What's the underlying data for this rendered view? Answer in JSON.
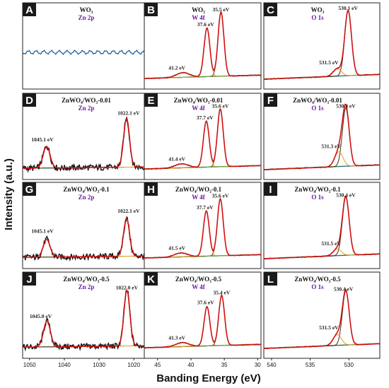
{
  "chart_data": {
    "type": "line",
    "xlabel": "Banding Energy (eV)",
    "ylabel": "Intensity (a.u.)",
    "columns": [
      {
        "id": "zn",
        "xlim": [
          1052,
          1017
        ],
        "ticks": [
          1050,
          1040,
          1030,
          1020
        ]
      },
      {
        "id": "w",
        "xlim": [
          47,
          29.5
        ],
        "ticks": [
          45,
          40,
          35,
          30
        ]
      },
      {
        "id": "o",
        "xlim": [
          541,
          526
        ],
        "ticks": [
          540,
          535,
          530
        ]
      }
    ],
    "panels": [
      {
        "letter": "A",
        "col": 0,
        "row": 0,
        "sample": "WO₃",
        "region": "Zn 2p",
        "kind": "flat",
        "peaks": [],
        "labels": []
      },
      {
        "letter": "B",
        "col": 1,
        "row": 0,
        "sample": "WO₃",
        "region": "W 4f",
        "kind": "w",
        "peaks": [
          {
            "c": 35.5,
            "h": 0.95,
            "w": 0.62
          },
          {
            "c": 37.6,
            "h": 0.72,
            "w": 0.62
          },
          {
            "c": 41.2,
            "h": 0.07,
            "w": 1.4
          }
        ],
        "labels": [
          {
            "t": "35.5 eV",
            "x": 35.5,
            "y": 1.02
          },
          {
            "t": "37.6 eV",
            "x": 37.8,
            "y": 0.8
          },
          {
            "t": "41.2 eV",
            "x": 42.1,
            "y": 0.16
          }
        ]
      },
      {
        "letter": "C",
        "col": 2,
        "row": 0,
        "sample": "WO₃",
        "region": "O 1s",
        "kind": "o",
        "peaks": [
          {
            "c": 530.1,
            "h": 0.96,
            "w": 0.62
          },
          {
            "c": 531.5,
            "h": 0.11,
            "w": 0.75
          }
        ],
        "labels": [
          {
            "t": "530.1 eV",
            "x": 530.1,
            "y": 1.04
          },
          {
            "t": "531.5 eV",
            "x": 532.6,
            "y": 0.24
          }
        ]
      },
      {
        "letter": "D",
        "col": 0,
        "row": 1,
        "sample": "ZnWO₄/WO₃-0.01",
        "region": "Zn 2p",
        "kind": "zn",
        "peaks": [
          {
            "c": 1022.1,
            "h": 0.72,
            "w": 1.2
          },
          {
            "c": 1045.1,
            "h": 0.32,
            "w": 1.4
          }
        ],
        "labels": [
          {
            "t": "1022.1 eV",
            "x": 1021.5,
            "y": 0.83
          },
          {
            "t": "1045.1 eV",
            "x": 1046.3,
            "y": 0.44
          }
        ]
      },
      {
        "letter": "E",
        "col": 1,
        "row": 1,
        "sample": "ZnWO₄/WO₃-0.01",
        "region": "W 4f",
        "kind": "w",
        "peaks": [
          {
            "c": 35.6,
            "h": 0.85,
            "w": 0.62
          },
          {
            "c": 37.7,
            "h": 0.68,
            "w": 0.62
          },
          {
            "c": 41.4,
            "h": 0.06,
            "w": 1.4
          }
        ],
        "labels": [
          {
            "t": "35.6 eV",
            "x": 35.6,
            "y": 0.93
          },
          {
            "t": "37.7 eV",
            "x": 37.9,
            "y": 0.76
          },
          {
            "t": "41.4 eV",
            "x": 42.1,
            "y": 0.15
          }
        ]
      },
      {
        "letter": "F",
        "col": 2,
        "row": 1,
        "sample": "ZnWO₄/WO₃-0.01",
        "region": "O 1s",
        "kind": "o",
        "peaks": [
          {
            "c": 530.4,
            "h": 0.86,
            "w": 0.62
          },
          {
            "c": 531.3,
            "h": 0.22,
            "w": 0.75
          }
        ],
        "labels": [
          {
            "t": "530.4 eV",
            "x": 530.4,
            "y": 0.93
          },
          {
            "t": "531.3 eV",
            "x": 532.3,
            "y": 0.34
          }
        ]
      },
      {
        "letter": "G",
        "col": 0,
        "row": 2,
        "sample": "ZnWO₄/WO₃-0.1",
        "region": "Zn 2p",
        "kind": "zn",
        "peaks": [
          {
            "c": 1022.1,
            "h": 0.56,
            "w": 1.2
          },
          {
            "c": 1045.1,
            "h": 0.26,
            "w": 1.4
          }
        ],
        "labels": [
          {
            "t": "1022.1 eV",
            "x": 1021.5,
            "y": 0.7
          },
          {
            "t": "1045.1 eV",
            "x": 1046.3,
            "y": 0.4
          }
        ]
      },
      {
        "letter": "H",
        "col": 1,
        "row": 2,
        "sample": "ZnWO₄/WO₃-0.1",
        "region": "W 4f",
        "kind": "w",
        "peaks": [
          {
            "c": 35.6,
            "h": 0.84,
            "w": 0.62
          },
          {
            "c": 37.7,
            "h": 0.67,
            "w": 0.62
          },
          {
            "c": 41.5,
            "h": 0.06,
            "w": 1.4
          }
        ],
        "labels": [
          {
            "t": "35.6 eV",
            "x": 35.6,
            "y": 0.92
          },
          {
            "t": "37.7 eV",
            "x": 37.9,
            "y": 0.75
          },
          {
            "t": "41.5 eV",
            "x": 42.1,
            "y": 0.15
          }
        ]
      },
      {
        "letter": "I",
        "col": 2,
        "row": 2,
        "sample": "ZnWO₄/WO₃-0.1",
        "region": "O 1s",
        "kind": "o",
        "peaks": [
          {
            "c": 530.4,
            "h": 0.86,
            "w": 0.62
          },
          {
            "c": 531.5,
            "h": 0.1,
            "w": 0.75
          }
        ],
        "labels": [
          {
            "t": "530.4 eV",
            "x": 530.4,
            "y": 0.93
          },
          {
            "t": "531.5 eV",
            "x": 532.3,
            "y": 0.22
          }
        ]
      },
      {
        "letter": "J",
        "col": 0,
        "row": 3,
        "sample": "ZnWO₄/WO₃-0.5",
        "region": "Zn 2p",
        "kind": "zn",
        "peaks": [
          {
            "c": 1022.0,
            "h": 0.82,
            "w": 1.2
          },
          {
            "c": 1045.0,
            "h": 0.38,
            "w": 1.4
          }
        ],
        "labels": [
          {
            "t": "1022.0 eV",
            "x": 1022.0,
            "y": 0.89
          },
          {
            "t": "1045.0 eV",
            "x": 1046.8,
            "y": 0.47
          }
        ]
      },
      {
        "letter": "K",
        "col": 1,
        "row": 3,
        "sample": "ZnWO₄/WO₃-0.5",
        "region": "W 4f",
        "kind": "w",
        "peaks": [
          {
            "c": 35.4,
            "h": 0.74,
            "w": 0.62
          },
          {
            "c": 37.6,
            "h": 0.58,
            "w": 0.62
          },
          {
            "c": 41.3,
            "h": 0.06,
            "w": 1.4
          }
        ],
        "labels": [
          {
            "t": "35.4 eV",
            "x": 35.4,
            "y": 0.82
          },
          {
            "t": "37.6 eV",
            "x": 37.8,
            "y": 0.67
          },
          {
            "t": "41.3 eV",
            "x": 42.1,
            "y": 0.15
          }
        ]
      },
      {
        "letter": "L",
        "col": 2,
        "row": 3,
        "sample": "ZnWO₄/WO₃-0.5",
        "region": "O 1s",
        "kind": "o",
        "peaks": [
          {
            "c": 530.4,
            "h": 0.8,
            "w": 0.62
          },
          {
            "c": 531.5,
            "h": 0.16,
            "w": 0.75
          }
        ],
        "labels": [
          {
            "t": "530.4 eV",
            "x": 530.7,
            "y": 0.87
          },
          {
            "t": "531.5 eV",
            "x": 532.6,
            "y": 0.3
          }
        ]
      }
    ],
    "colors": {
      "raw": "#111111",
      "fit": "#e01010",
      "comp_main": "#4a2a10",
      "comp_b": "#e89a2a",
      "comp_c": "#7aa04a",
      "bg_green": "#2a9a2a",
      "bg_blue": "#2a40c0",
      "bg_magenta": "#c030c0",
      "flat": "#1a5a9a",
      "title_black": "#111111",
      "title_purple": "#6a1aa0",
      "letter_bg": "#1a1a1a"
    }
  }
}
